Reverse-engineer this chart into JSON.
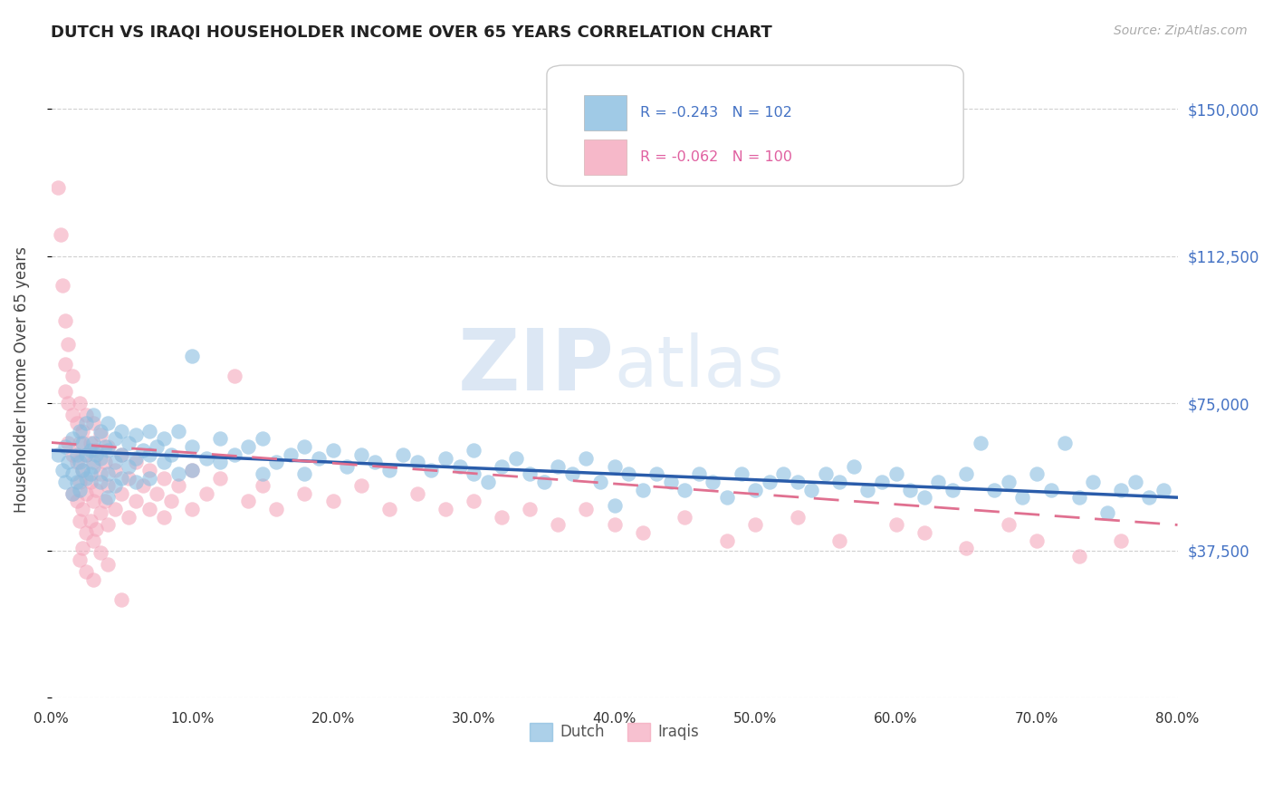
{
  "title": "DUTCH VS IRAQI HOUSEHOLDER INCOME OVER 65 YEARS CORRELATION CHART",
  "source_text": "Source: ZipAtlas.com",
  "ylabel": "Householder Income Over 65 years",
  "xlim": [
    0.0,
    0.8
  ],
  "ylim": [
    0,
    162000
  ],
  "yticks": [
    0,
    37500,
    75000,
    112500,
    150000
  ],
  "ytick_labels": [
    "",
    "$37,500",
    "$75,000",
    "$112,500",
    "$150,000"
  ],
  "xticks": [
    0.0,
    0.1,
    0.2,
    0.3,
    0.4,
    0.5,
    0.6,
    0.7,
    0.8
  ],
  "xtick_labels": [
    "0.0%",
    "10.0%",
    "20.0%",
    "30.0%",
    "40.0%",
    "50.0%",
    "60.0%",
    "70.0%",
    "80.0%"
  ],
  "dutch_color": "#89bde0",
  "iraqi_color": "#f4a7bc",
  "dutch_line_color": "#2a5caa",
  "iraqi_line_color": "#e07090",
  "dutch_R": -0.243,
  "dutch_N": 102,
  "iraqi_R": -0.062,
  "iraqi_N": 100,
  "legend_dutch_label": "Dutch",
  "legend_iraqi_label": "Iraqis",
  "watermark_zip": "ZIP",
  "watermark_atlas": "atlas",
  "background_color": "#ffffff",
  "title_color": "#222222",
  "ytick_color": "#4472c4",
  "xtick_color": "#333333",
  "grid_color": "#d0d0d0",
  "dutch_trend_x": [
    0.0,
    0.8
  ],
  "dutch_trend_y": [
    63000,
    51000
  ],
  "iraqi_trend_x": [
    0.0,
    0.8
  ],
  "iraqi_trend_y": [
    65000,
    44000
  ],
  "dutch_scatter": [
    [
      0.005,
      62000
    ],
    [
      0.008,
      58000
    ],
    [
      0.01,
      64000
    ],
    [
      0.01,
      55000
    ],
    [
      0.012,
      60000
    ],
    [
      0.015,
      66000
    ],
    [
      0.015,
      57000
    ],
    [
      0.015,
      52000
    ],
    [
      0.018,
      62000
    ],
    [
      0.018,
      55000
    ],
    [
      0.02,
      68000
    ],
    [
      0.02,
      60000
    ],
    [
      0.02,
      53000
    ],
    [
      0.022,
      65000
    ],
    [
      0.022,
      58000
    ],
    [
      0.025,
      70000
    ],
    [
      0.025,
      62000
    ],
    [
      0.025,
      56000
    ],
    [
      0.028,
      63000
    ],
    [
      0.028,
      57000
    ],
    [
      0.03,
      72000
    ],
    [
      0.03,
      65000
    ],
    [
      0.03,
      59000
    ],
    [
      0.032,
      62000
    ],
    [
      0.035,
      68000
    ],
    [
      0.035,
      61000
    ],
    [
      0.035,
      55000
    ],
    [
      0.038,
      64000
    ],
    [
      0.04,
      70000
    ],
    [
      0.04,
      63000
    ],
    [
      0.04,
      57000
    ],
    [
      0.04,
      51000
    ],
    [
      0.045,
      66000
    ],
    [
      0.045,
      60000
    ],
    [
      0.045,
      54000
    ],
    [
      0.05,
      68000
    ],
    [
      0.05,
      62000
    ],
    [
      0.05,
      56000
    ],
    [
      0.055,
      65000
    ],
    [
      0.055,
      59000
    ],
    [
      0.06,
      67000
    ],
    [
      0.06,
      61000
    ],
    [
      0.06,
      55000
    ],
    [
      0.065,
      63000
    ],
    [
      0.07,
      68000
    ],
    [
      0.07,
      62000
    ],
    [
      0.07,
      56000
    ],
    [
      0.075,
      64000
    ],
    [
      0.08,
      66000
    ],
    [
      0.08,
      60000
    ],
    [
      0.085,
      62000
    ],
    [
      0.09,
      68000
    ],
    [
      0.09,
      57000
    ],
    [
      0.1,
      87000
    ],
    [
      0.1,
      64000
    ],
    [
      0.1,
      58000
    ],
    [
      0.11,
      61000
    ],
    [
      0.12,
      66000
    ],
    [
      0.12,
      60000
    ],
    [
      0.13,
      62000
    ],
    [
      0.14,
      64000
    ],
    [
      0.15,
      66000
    ],
    [
      0.15,
      57000
    ],
    [
      0.16,
      60000
    ],
    [
      0.17,
      62000
    ],
    [
      0.18,
      64000
    ],
    [
      0.18,
      57000
    ],
    [
      0.19,
      61000
    ],
    [
      0.2,
      63000
    ],
    [
      0.21,
      59000
    ],
    [
      0.22,
      62000
    ],
    [
      0.23,
      60000
    ],
    [
      0.24,
      58000
    ],
    [
      0.25,
      62000
    ],
    [
      0.26,
      60000
    ],
    [
      0.27,
      58000
    ],
    [
      0.28,
      61000
    ],
    [
      0.29,
      59000
    ],
    [
      0.3,
      63000
    ],
    [
      0.3,
      57000
    ],
    [
      0.31,
      55000
    ],
    [
      0.32,
      59000
    ],
    [
      0.33,
      61000
    ],
    [
      0.34,
      57000
    ],
    [
      0.35,
      55000
    ],
    [
      0.36,
      59000
    ],
    [
      0.37,
      57000
    ],
    [
      0.38,
      61000
    ],
    [
      0.39,
      55000
    ],
    [
      0.4,
      59000
    ],
    [
      0.4,
      49000
    ],
    [
      0.41,
      57000
    ],
    [
      0.42,
      53000
    ],
    [
      0.43,
      57000
    ],
    [
      0.44,
      55000
    ],
    [
      0.45,
      53000
    ],
    [
      0.46,
      57000
    ],
    [
      0.47,
      55000
    ],
    [
      0.48,
      51000
    ],
    [
      0.49,
      57000
    ],
    [
      0.5,
      53000
    ],
    [
      0.51,
      55000
    ]
  ],
  "dutch_scatter2": [
    [
      0.52,
      57000
    ],
    [
      0.53,
      55000
    ],
    [
      0.54,
      53000
    ],
    [
      0.55,
      57000
    ],
    [
      0.56,
      55000
    ],
    [
      0.57,
      59000
    ],
    [
      0.58,
      53000
    ],
    [
      0.59,
      55000
    ],
    [
      0.6,
      57000
    ],
    [
      0.61,
      53000
    ],
    [
      0.62,
      51000
    ],
    [
      0.63,
      55000
    ],
    [
      0.64,
      53000
    ],
    [
      0.65,
      57000
    ],
    [
      0.66,
      65000
    ],
    [
      0.67,
      53000
    ],
    [
      0.68,
      55000
    ],
    [
      0.69,
      51000
    ],
    [
      0.7,
      57000
    ],
    [
      0.71,
      53000
    ],
    [
      0.72,
      65000
    ],
    [
      0.73,
      51000
    ],
    [
      0.74,
      55000
    ],
    [
      0.75,
      47000
    ],
    [
      0.76,
      53000
    ],
    [
      0.77,
      55000
    ],
    [
      0.78,
      51000
    ],
    [
      0.79,
      53000
    ]
  ],
  "iraqi_scatter": [
    [
      0.005,
      130000
    ],
    [
      0.007,
      118000
    ],
    [
      0.008,
      105000
    ],
    [
      0.01,
      96000
    ],
    [
      0.01,
      85000
    ],
    [
      0.01,
      78000
    ],
    [
      0.012,
      90000
    ],
    [
      0.012,
      75000
    ],
    [
      0.012,
      65000
    ],
    [
      0.015,
      82000
    ],
    [
      0.015,
      72000
    ],
    [
      0.015,
      62000
    ],
    [
      0.015,
      52000
    ],
    [
      0.018,
      70000
    ],
    [
      0.018,
      60000
    ],
    [
      0.018,
      50000
    ],
    [
      0.02,
      75000
    ],
    [
      0.02,
      65000
    ],
    [
      0.02,
      55000
    ],
    [
      0.02,
      45000
    ],
    [
      0.02,
      35000
    ],
    [
      0.022,
      68000
    ],
    [
      0.022,
      58000
    ],
    [
      0.022,
      48000
    ],
    [
      0.022,
      38000
    ],
    [
      0.025,
      72000
    ],
    [
      0.025,
      62000
    ],
    [
      0.025,
      52000
    ],
    [
      0.025,
      42000
    ],
    [
      0.025,
      32000
    ],
    [
      0.028,
      65000
    ],
    [
      0.028,
      55000
    ],
    [
      0.028,
      45000
    ],
    [
      0.03,
      70000
    ],
    [
      0.03,
      60000
    ],
    [
      0.03,
      50000
    ],
    [
      0.03,
      40000
    ],
    [
      0.03,
      30000
    ],
    [
      0.032,
      63000
    ],
    [
      0.032,
      53000
    ],
    [
      0.032,
      43000
    ],
    [
      0.035,
      67000
    ],
    [
      0.035,
      57000
    ],
    [
      0.035,
      47000
    ],
    [
      0.035,
      37000
    ],
    [
      0.038,
      60000
    ],
    [
      0.038,
      50000
    ],
    [
      0.04,
      64000
    ],
    [
      0.04,
      54000
    ],
    [
      0.04,
      44000
    ],
    [
      0.04,
      34000
    ],
    [
      0.045,
      58000
    ],
    [
      0.045,
      48000
    ],
    [
      0.05,
      62000
    ],
    [
      0.05,
      52000
    ],
    [
      0.05,
      25000
    ],
    [
      0.055,
      56000
    ],
    [
      0.055,
      46000
    ],
    [
      0.06,
      60000
    ],
    [
      0.06,
      50000
    ],
    [
      0.065,
      54000
    ],
    [
      0.07,
      58000
    ],
    [
      0.07,
      48000
    ],
    [
      0.075,
      52000
    ],
    [
      0.08,
      56000
    ],
    [
      0.08,
      46000
    ],
    [
      0.085,
      50000
    ],
    [
      0.09,
      54000
    ],
    [
      0.1,
      58000
    ],
    [
      0.1,
      48000
    ],
    [
      0.11,
      52000
    ],
    [
      0.12,
      56000
    ],
    [
      0.13,
      82000
    ],
    [
      0.14,
      50000
    ],
    [
      0.15,
      54000
    ],
    [
      0.16,
      48000
    ],
    [
      0.18,
      52000
    ],
    [
      0.2,
      50000
    ],
    [
      0.22,
      54000
    ],
    [
      0.24,
      48000
    ],
    [
      0.26,
      52000
    ],
    [
      0.28,
      48000
    ],
    [
      0.3,
      50000
    ],
    [
      0.32,
      46000
    ],
    [
      0.34,
      48000
    ],
    [
      0.36,
      44000
    ],
    [
      0.38,
      48000
    ],
    [
      0.4,
      44000
    ],
    [
      0.42,
      42000
    ],
    [
      0.45,
      46000
    ],
    [
      0.48,
      40000
    ],
    [
      0.5,
      44000
    ],
    [
      0.53,
      46000
    ],
    [
      0.56,
      40000
    ],
    [
      0.6,
      44000
    ],
    [
      0.62,
      42000
    ],
    [
      0.65,
      38000
    ],
    [
      0.68,
      44000
    ],
    [
      0.7,
      40000
    ],
    [
      0.73,
      36000
    ],
    [
      0.76,
      40000
    ]
  ]
}
